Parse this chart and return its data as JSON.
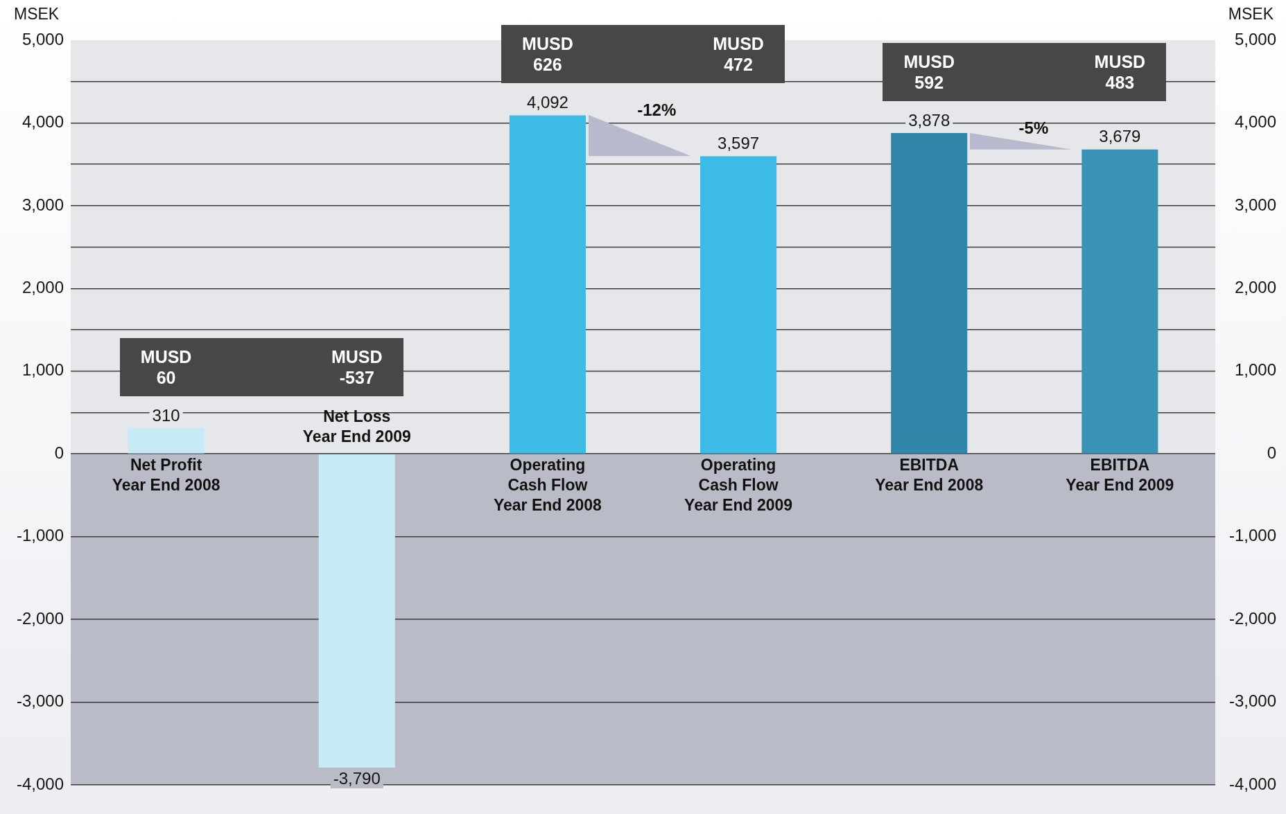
{
  "chart_data": {
    "type": "bar",
    "categories": [
      "Net Profit\nYear End 2008",
      "Net Loss\nYear End 2009",
      "Operating\nCash Flow\nYear End 2008",
      "Operating\nCash Flow\nYear End 2009",
      "EBITDA\nYear End 2008",
      "EBITDA\nYear End 2009"
    ],
    "values": [
      310,
      -3790,
      4092,
      3597,
      3878,
      3679
    ],
    "colors": [
      "#c6ebf7",
      "#c6ebf7",
      "#3bbbe6",
      "#3bbbe6",
      "#2f86a8",
      "#3a93b6"
    ],
    "value_labels": [
      "310",
      "-3,790",
      "4,092",
      "3,597",
      "3,878",
      "3,679"
    ],
    "ylabel": "MSEK",
    "y2label": "MSEK",
    "ylim": [
      -4000,
      5000
    ],
    "yticks": [
      {
        "value": -4000,
        "label": "-4,000"
      },
      {
        "value": -3000,
        "label": "-3,000"
      },
      {
        "value": -2000,
        "label": "-2,000"
      },
      {
        "value": -1000,
        "label": "-1,000"
      },
      0,
      {
        "value": 500,
        "label": null
      },
      {
        "value": 1000,
        "label": "1,000"
      },
      {
        "value": 1500,
        "label": null
      },
      {
        "value": 2000,
        "label": "2,000"
      },
      {
        "value": 2500,
        "label": null
      },
      {
        "value": 3000,
        "label": "3,000"
      },
      {
        "value": 3500,
        "label": null
      },
      {
        "value": 4000,
        "label": "4,000"
      },
      {
        "value": 4500,
        "label": null
      },
      {
        "value": 5000,
        "label": "5,000"
      }
    ],
    "y2lim": [
      -4000,
      5000
    ],
    "y2ticks": [
      {
        "value": -4000,
        "label": "-4,000"
      },
      {
        "value": -3000,
        "label": "-3,000"
      },
      {
        "value": -2000,
        "label": "-2,000"
      },
      {
        "value": -1000,
        "label": "-1,000"
      },
      0,
      {
        "value": 1000,
        "label": "1,000"
      },
      {
        "value": 2000,
        "label": "2,000"
      },
      {
        "value": 3000,
        "label": "3,000"
      },
      {
        "value": 4000,
        "label": "4,000"
      },
      {
        "value": 5000,
        "label": "5,000"
      }
    ],
    "grid": "y",
    "bands": [
      {
        "axis": "y",
        "from": -4000,
        "to": 0,
        "color": "#b9bcc6"
      }
    ],
    "annotations": [
      "MUSD\n60",
      "MUSD\n-537",
      "MUSD\n626",
      "MUSD\n472",
      "MUSD\n592",
      "MUSD\n483",
      "-12%",
      "-5%"
    ]
  }
}
